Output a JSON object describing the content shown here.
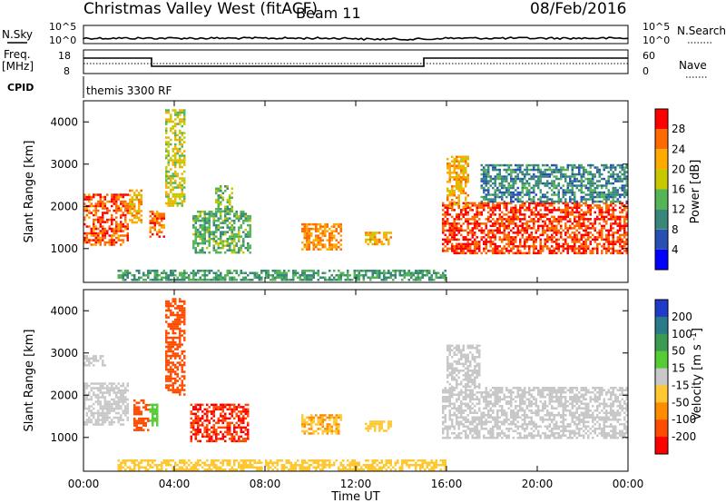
{
  "header": {
    "station": "Christmas Valley West (fitACF)",
    "beam": "Beam 11",
    "date": "08/Feb/2016"
  },
  "panels": {
    "nsky": {
      "left_label": "N.Sky",
      "left_ticks": [
        "10^5",
        "10^0"
      ],
      "right_label": "N.Search",
      "right_ticks": [
        "10^5",
        "10^0"
      ]
    },
    "freq": {
      "left_label_1": "Freq.",
      "left_label_2": "[MHz]",
      "left_ticks": [
        "18",
        "8"
      ],
      "right_label": "Nave",
      "right_ticks": [
        "60",
        "0"
      ]
    },
    "cpid": {
      "label": "CPID",
      "value": "themis 3300 RF"
    }
  },
  "chart_data": [
    {
      "type": "heatmap",
      "name": "power",
      "xlabel": "",
      "ylabel": "Slant Range [km]",
      "x_ticks": [
        "00:00",
        "04:00",
        "08:00",
        "12:00",
        "16:00",
        "20:00",
        "00:00"
      ],
      "x_range_hours": [
        0,
        24
      ],
      "y_ticks": [
        1000,
        2000,
        3000,
        4000
      ],
      "ylim": [
        200,
        4500
      ],
      "colorbar": {
        "label": "Power [dB]",
        "ticks": [
          4,
          8,
          12,
          16,
          20,
          24,
          28
        ],
        "range": [
          0,
          30
        ],
        "colors": [
          "#0000ff",
          "#2850b4",
          "#37877a",
          "#55b455",
          "#c8c800",
          "#ffaa00",
          "#ff6a00",
          "#ff0000"
        ]
      },
      "regions": [
        {
          "t0": 0.0,
          "t1": 2.0,
          "r0": 1100,
          "r1": 2300,
          "level": 27
        },
        {
          "t0": 2.0,
          "t1": 2.6,
          "r0": 1600,
          "r1": 2400,
          "level": 22
        },
        {
          "t0": 2.9,
          "t1": 3.6,
          "r0": 1300,
          "r1": 1900,
          "level": 26
        },
        {
          "t0": 3.6,
          "t1": 4.5,
          "r0": 2000,
          "r1": 4300,
          "level": 18
        },
        {
          "t0": 4.8,
          "t1": 7.4,
          "r0": 900,
          "r1": 1900,
          "level": 13
        },
        {
          "t0": 5.8,
          "t1": 6.6,
          "r0": 1900,
          "r1": 2500,
          "level": 14
        },
        {
          "t0": 9.6,
          "t1": 11.3,
          "r0": 1000,
          "r1": 1600,
          "level": 24
        },
        {
          "t0": 12.4,
          "t1": 13.6,
          "r0": 1100,
          "r1": 1400,
          "level": 22
        },
        {
          "t0": 15.8,
          "t1": 24.0,
          "r0": 900,
          "r1": 2100,
          "level": 28
        },
        {
          "t0": 16.0,
          "t1": 17.0,
          "r0": 2000,
          "r1": 3200,
          "level": 22
        },
        {
          "t0": 17.5,
          "t1": 24.0,
          "r0": 2100,
          "r1": 3000,
          "level": 10
        },
        {
          "t0": 1.5,
          "t1": 16.0,
          "r0": 250,
          "r1": 500,
          "level": 12
        }
      ]
    },
    {
      "type": "heatmap",
      "name": "velocity",
      "xlabel": "Time UT",
      "ylabel": "Slant Range [km]",
      "x_ticks": [
        "00:00",
        "04:00",
        "08:00",
        "12:00",
        "16:00",
        "20:00",
        "00:00"
      ],
      "x_range_hours": [
        0,
        24
      ],
      "y_ticks": [
        1000,
        2000,
        3000,
        4000
      ],
      "ylim": [
        200,
        4500
      ],
      "colorbar": {
        "label": "Velocity [m s^-1]",
        "ticks": [
          200,
          100,
          50,
          15,
          -15,
          -50,
          -100,
          -200
        ],
        "colors": [
          "#1e3cc8",
          "#2a7a8a",
          "#3c9b50",
          "#55cc33",
          "#c8c8c8",
          "#ffc832",
          "#ff8c00",
          "#ff4b00",
          "#ff0000"
        ]
      },
      "regions": [
        {
          "t0": 0.0,
          "t1": 2.0,
          "r0": 1300,
          "r1": 2300,
          "level": 0
        },
        {
          "t0": 0.0,
          "t1": 1.0,
          "r0": 2700,
          "r1": 2950,
          "level": 0
        },
        {
          "t0": 2.2,
          "t1": 2.9,
          "r0": 1200,
          "r1": 1900,
          "level": -150
        },
        {
          "t0": 2.9,
          "t1": 3.3,
          "r0": 1300,
          "r1": 1800,
          "level": 30
        },
        {
          "t0": 3.6,
          "t1": 4.5,
          "r0": 2000,
          "r1": 4300,
          "level": -150
        },
        {
          "t0": 4.7,
          "t1": 7.3,
          "r0": 900,
          "r1": 1800,
          "level": -200
        },
        {
          "t0": 9.6,
          "t1": 11.3,
          "r0": 1100,
          "r1": 1550,
          "level": -50
        },
        {
          "t0": 12.4,
          "t1": 13.6,
          "r0": 1150,
          "r1": 1400,
          "level": -40
        },
        {
          "t0": 15.8,
          "t1": 24.0,
          "r0": 1000,
          "r1": 2200,
          "level": 0
        },
        {
          "t0": 16.0,
          "t1": 17.5,
          "r0": 2200,
          "r1": 3200,
          "level": 0
        },
        {
          "t0": 1.5,
          "t1": 16.0,
          "r0": 250,
          "r1": 480,
          "level": -40
        }
      ]
    }
  ]
}
